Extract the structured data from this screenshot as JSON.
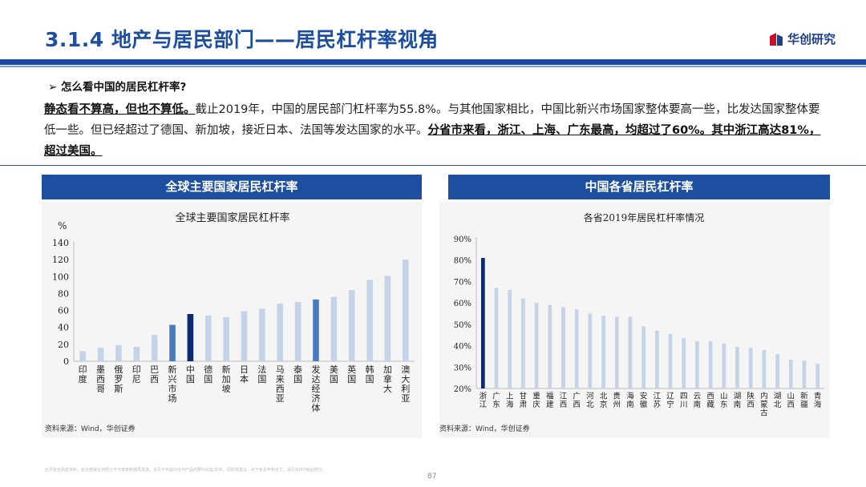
{
  "slide": {
    "title": "3.1.4 地产与居民部门——居民杠杆率视角",
    "logo": "华创研究",
    "question": "➢ 怎么看中国的居民杠杆率?",
    "para": {
      "b1": "静态看不算高，但也不算低。",
      "t1": "截止2019年，中国的居民部门杠杆率为55.8%。与其他国家相比，中国比新兴市场国家整体要高一些，比发达国家整体要低一些。但已经超过了德国、新加坡，接近日本、法国等发达国家的水平。",
      "b2": "分省市来看，浙江、上海、广东最高，均超过了60%。其中浙江高达81%，超过美国。"
    },
    "footer_note": "此页包含机密资料，其全部或任何部分不可被复制或再发送。本页不构成对任何产品的要约出售/购买、招揽或建议。关于免责声明全文，请见本PPT最后部分。",
    "page_number": "87"
  },
  "colors": {
    "highlight": "#0d2a6e",
    "medium": "#4a7bc0",
    "light": "#c5d3e8",
    "header": "#1d4ea0"
  },
  "chart_data": [
    {
      "type": "bar",
      "panel_header": "全球主要国家居民杠杆率",
      "title": "全球主要国家居民杠杆率",
      "unit": "%",
      "source": "资料来源：Wind，华创证券",
      "ylim": [
        0,
        140
      ],
      "yticks": [
        0,
        20,
        40,
        60,
        80,
        100,
        120,
        140
      ],
      "grid": false,
      "categories": [
        "印度",
        "墨西哥",
        "俄罗斯",
        "印尼",
        "巴西",
        "新兴市场",
        "中国",
        "德国",
        "新加坡",
        "日本",
        "法国",
        "马来西亚",
        "泰国",
        "发达经济体",
        "美国",
        "英国",
        "韩国",
        "加拿大",
        "澳大利亚"
      ],
      "values": [
        12,
        16,
        19,
        17,
        31,
        43,
        55.8,
        54,
        52,
        59,
        62,
        68,
        70,
        73,
        76,
        84,
        96,
        101,
        120
      ],
      "highlight": [
        "highlight",
        "light",
        "light",
        "light",
        "light",
        "medium",
        "dark",
        "light",
        "light",
        "light",
        "light",
        "light",
        "light",
        "medium",
        "light",
        "light",
        "light",
        "light",
        "light"
      ]
    },
    {
      "type": "bar",
      "panel_header": "中国各省居民杠杆率",
      "title": "各省2019年居民杠杆率情况",
      "source": "资料来源：Wind，华创证券",
      "ylim": [
        20,
        90
      ],
      "yticks": [
        "20%",
        "30%",
        "40%",
        "50%",
        "60%",
        "70%",
        "80%",
        "90%"
      ],
      "grid": false,
      "categories": [
        "浙江",
        "广东",
        "上海",
        "甘肃",
        "重庆",
        "福建",
        "江西",
        "广西",
        "河北",
        "北京",
        "贵州",
        "海南",
        "安徽",
        "江苏",
        "辽宁",
        "四川",
        "云南",
        "西藏",
        "山东",
        "湖南",
        "陕西",
        "内蒙古",
        "湖北",
        "山西",
        "新疆",
        "青海"
      ],
      "values": [
        81,
        67,
        66,
        62,
        60,
        59,
        58,
        57,
        55,
        54,
        53.5,
        53.5,
        49,
        47,
        45.5,
        43.5,
        42,
        42,
        41,
        39.5,
        39,
        38,
        36,
        33.5,
        33,
        31.5
      ],
      "highlight": [
        "dark",
        "light",
        "light",
        "light",
        "light",
        "light",
        "light",
        "light",
        "light",
        "light",
        "light",
        "light",
        "light",
        "light",
        "light",
        "light",
        "light",
        "light",
        "light",
        "light",
        "light",
        "light",
        "light",
        "light",
        "light",
        "light"
      ]
    }
  ]
}
